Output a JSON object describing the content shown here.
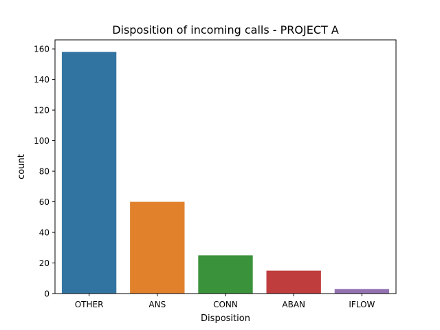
{
  "chart_data": {
    "type": "bar",
    "title": "Disposition of incoming calls - PROJECT A",
    "xlabel": "Disposition",
    "ylabel": "count",
    "categories": [
      "OTHER",
      "ANS",
      "CONN",
      "ABAN",
      "IFLOW"
    ],
    "values": [
      158,
      60,
      25,
      15,
      3
    ],
    "colors": [
      "#3274a1",
      "#e1812c",
      "#3a923a",
      "#c03d3e",
      "#9372b2"
    ],
    "ylim": [
      0,
      165.9
    ],
    "yticks": [
      0,
      20,
      40,
      60,
      80,
      100,
      120,
      140,
      160
    ],
    "grid": false,
    "legend": "none"
  }
}
